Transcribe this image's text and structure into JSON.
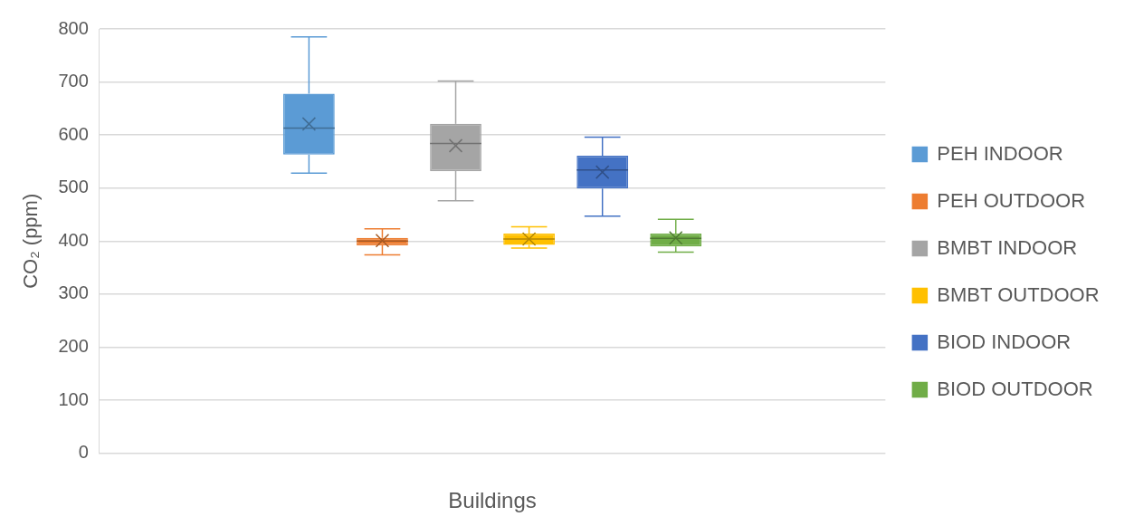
{
  "chart_data": {
    "type": "box",
    "xlabel": "Buildings",
    "ylabel": "CO₂ (ppm)",
    "categories": [
      null
    ],
    "ylim": [
      0,
      800
    ],
    "yticks": [
      0,
      100,
      200,
      300,
      400,
      500,
      600,
      700,
      800
    ],
    "grid": "y",
    "legend": "right",
    "marker": "cross",
    "series": [
      {
        "name": "PEH INDOOR",
        "color": "#5b9bd5",
        "boxes": [
          {
            "low": 528,
            "q1": 563,
            "median": 613,
            "q3": 678,
            "high": 785,
            "mean": 621
          }
        ]
      },
      {
        "name": "PEH OUTDOOR",
        "color": "#ed7d31",
        "boxes": [
          {
            "low": 374,
            "q1": 392,
            "median": 400,
            "q3": 406,
            "high": 423,
            "mean": 401
          }
        ]
      },
      {
        "name": "BMBT INDOOR",
        "color": "#a5a5a5",
        "boxes": [
          {
            "low": 476,
            "q1": 532,
            "median": 584,
            "q3": 621,
            "high": 702,
            "mean": 580
          }
        ]
      },
      {
        "name": "BMBT OUTDOOR",
        "color": "#ffc000",
        "boxes": [
          {
            "low": 387,
            "q1": 393,
            "median": 404,
            "q3": 414,
            "high": 427,
            "mean": 404
          }
        ]
      },
      {
        "name": "BIOD INDOOR",
        "color": "#4472c4",
        "boxes": [
          {
            "low": 447,
            "q1": 499,
            "median": 534,
            "q3": 561,
            "high": 596,
            "mean": 530
          }
        ]
      },
      {
        "name": "BIOD OUTDOOR",
        "color": "#70ad47",
        "boxes": [
          {
            "low": 379,
            "q1": 390,
            "median": 405,
            "q3": 414,
            "high": 441,
            "mean": 406
          }
        ]
      }
    ]
  }
}
